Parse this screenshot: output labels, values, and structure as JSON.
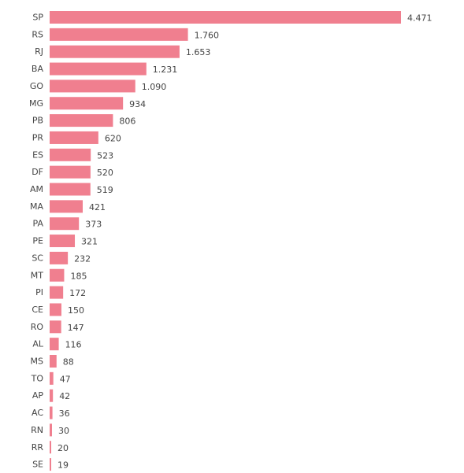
{
  "chart_data": {
    "type": "bar",
    "orientation": "horizontal",
    "categories": [
      "SP",
      "RS",
      "RJ",
      "BA",
      "GO",
      "MG",
      "PB",
      "PR",
      "ES",
      "DF",
      "AM",
      "MA",
      "PA",
      "PE",
      "SC",
      "MT",
      "PI",
      "CE",
      "RO",
      "AL",
      "MS",
      "TO",
      "AP",
      "AC",
      "RN",
      "RR",
      "SE"
    ],
    "values": [
      4471,
      1760,
      1653,
      1231,
      1090,
      934,
      806,
      620,
      523,
      520,
      519,
      421,
      373,
      321,
      232,
      185,
      172,
      150,
      147,
      116,
      88,
      47,
      42,
      36,
      30,
      20,
      19
    ],
    "value_labels": [
      "4.471",
      "1.760",
      "1.653",
      "1.231",
      "1.090",
      "934",
      "806",
      "620",
      "523",
      "520",
      "519",
      "421",
      "373",
      "321",
      "232",
      "185",
      "172",
      "150",
      "147",
      "116",
      "88",
      "47",
      "42",
      "36",
      "30",
      "20",
      "19"
    ],
    "title": "",
    "xlabel": "",
    "ylabel": "",
    "xlim": [
      0,
      4471
    ],
    "grid": false,
    "legend": "none",
    "bar_color": "#f07f8f"
  }
}
